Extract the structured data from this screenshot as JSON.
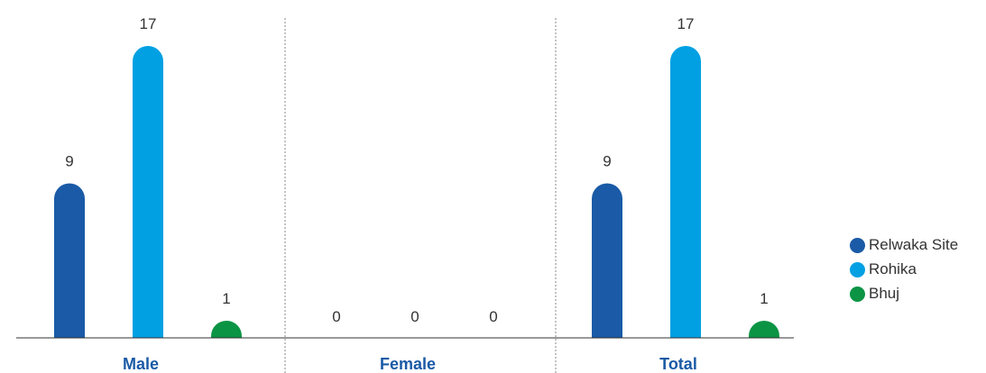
{
  "chart_data": {
    "type": "bar",
    "categories": [
      "Male",
      "Female",
      "Total"
    ],
    "series": [
      {
        "name": "Relwaka Site",
        "values": [
          9,
          0,
          9
        ],
        "color": "#1a5aa6"
      },
      {
        "name": "Rohika",
        "values": [
          17,
          0,
          17
        ],
        "color": "#00a0e3"
      },
      {
        "name": "Bhuj",
        "values": [
          1,
          0,
          1
        ],
        "color": "#0b9444"
      }
    ],
    "ylim": [
      0,
      17
    ],
    "category_label_color": "#1a5aa6",
    "value_label_color": "#333333",
    "grid": false,
    "category_separators": "dotted",
    "legend_position": "right"
  }
}
